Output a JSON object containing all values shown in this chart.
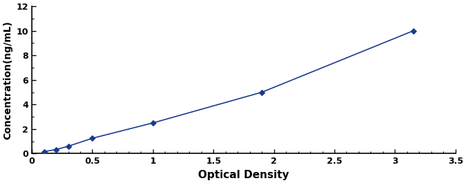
{
  "x": [
    0.1,
    0.2,
    0.3,
    0.5,
    1.0,
    1.9,
    3.15
  ],
  "y": [
    0.16,
    0.33,
    0.6,
    1.25,
    2.5,
    5.0,
    10.0
  ],
  "line_color": "#1a3a8c",
  "marker": "D",
  "marker_size": 4,
  "marker_color": "#1a3a8c",
  "xlabel": "Optical Density",
  "ylabel": "Concentration(ng/mL)",
  "xlim": [
    0.0,
    3.5
  ],
  "ylim": [
    0,
    12
  ],
  "xticks": [
    0.0,
    0.5,
    1.0,
    1.5,
    2.0,
    2.5,
    3.0,
    3.5
  ],
  "yticks": [
    0,
    2,
    4,
    6,
    8,
    10,
    12
  ],
  "xlabel_fontsize": 11,
  "ylabel_fontsize": 10,
  "tick_fontsize": 9,
  "line_width": 1.2,
  "background_color": "#ffffff",
  "figure_width": 6.73,
  "figure_height": 2.65
}
